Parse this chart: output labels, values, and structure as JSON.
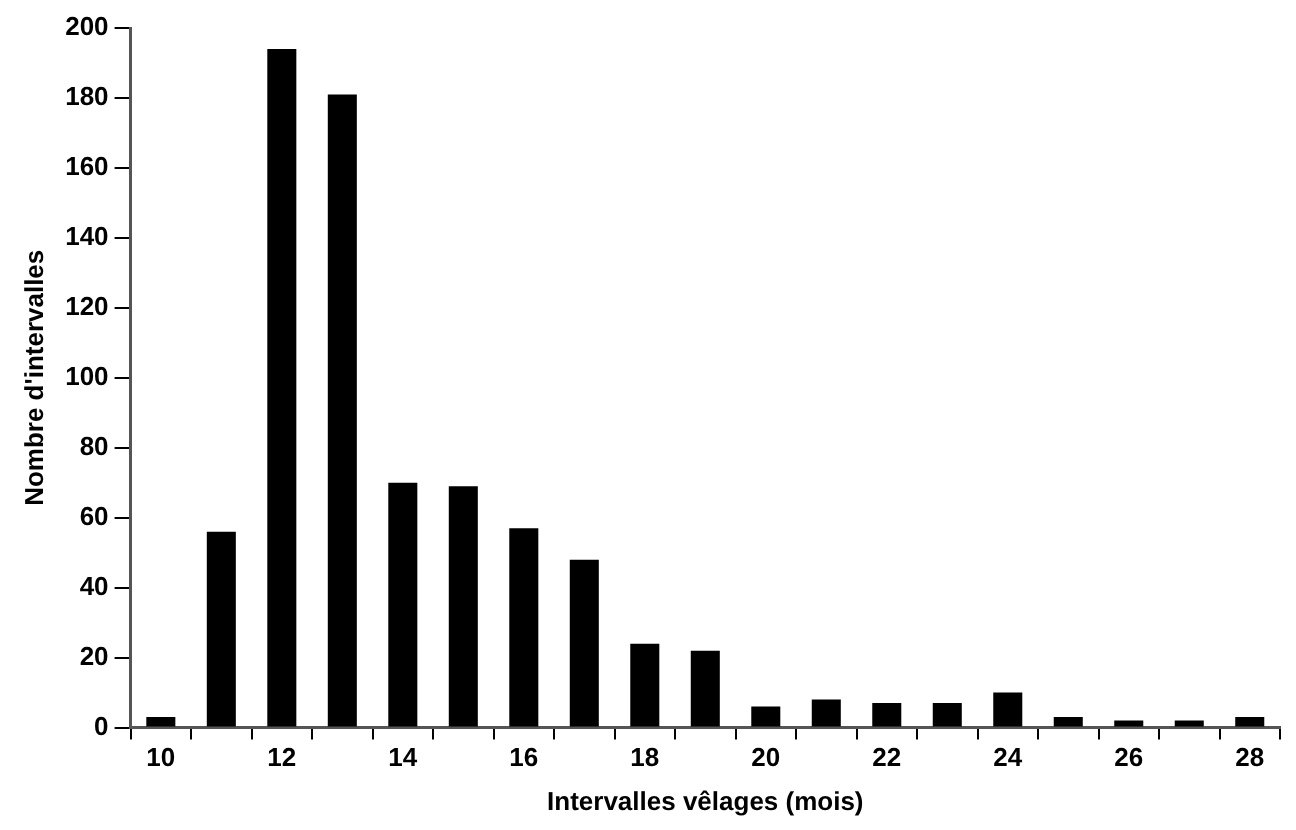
{
  "chart_data": {
    "type": "bar",
    "xlabel": "Intervalles vêlages (mois)",
    "ylabel": "Nombre d'intervalles",
    "categories": [
      "10",
      null,
      "12",
      null,
      "14",
      null,
      "16",
      null,
      "18",
      null,
      "20",
      null,
      "22",
      null,
      "24",
      null,
      "26",
      null,
      "28"
    ],
    "values": [
      3,
      56,
      194,
      181,
      70,
      69,
      57,
      48,
      24,
      22,
      6,
      8,
      7,
      7,
      10,
      3,
      2,
      2,
      3
    ],
    "color": "#000000",
    "ylim": [
      0,
      200
    ],
    "yticks": [
      0,
      20,
      40,
      60,
      80,
      100,
      120,
      140,
      160,
      180,
      200
    ],
    "grid": false,
    "legend": false
  }
}
